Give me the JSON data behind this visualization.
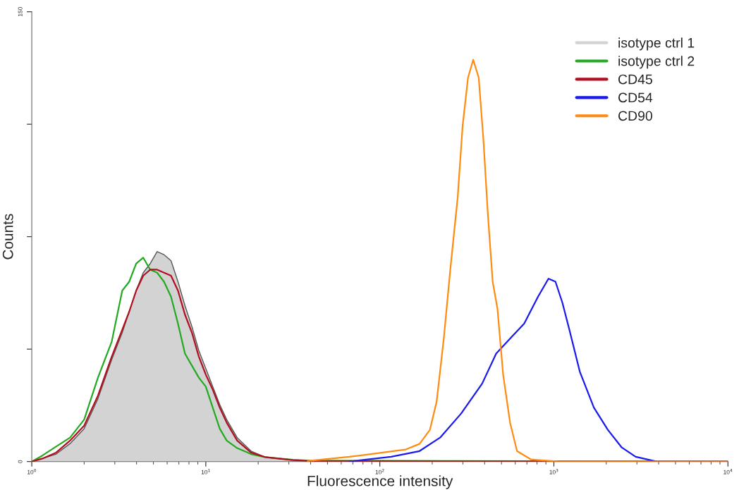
{
  "chart_data": {
    "type": "line",
    "xlabel": "Fluorescence intensity",
    "ylabel": "Counts",
    "log": "x",
    "xlim": [
      1,
      10000
    ],
    "xticks": [
      {
        "value": 1,
        "label": "10$^{0}$"
      },
      {
        "value": 10,
        "label": "10$^{1}$"
      },
      {
        "value": 100,
        "label": "10$^{2}$"
      },
      {
        "value": 1000,
        "label": "10$^{3}$"
      },
      {
        "value": 10000,
        "label": "10$^{4}$"
      }
    ],
    "ylim": [
      0,
      150
    ],
    "yticks": [
      0,
      {
        "value": 37.5,
        "label": null
      },
      {
        "value": 75,
        "label": null
      },
      {
        "value": 112.5,
        "label": null
      },
      150
    ],
    "grid": false,
    "legend": "top right",
    "series": [
      {
        "name": "isotype ctrl 1",
        "type": "area",
        "color": "#d3d3d3",
        "x": [
          1,
          1.15,
          1.38,
          1.66,
          2.0,
          2.4,
          2.88,
          3.31,
          3.63,
          3.98,
          4.37,
          4.79,
          5.25,
          5.75,
          6.31,
          6.92,
          7.59,
          8.32,
          9.12,
          10,
          10.96,
          12.02,
          13.18,
          15.14,
          18.2,
          21.9,
          31.6,
          39.8,
          10000
        ],
        "values": [
          0,
          1,
          2.5,
          6,
          11,
          21,
          34,
          43,
          50,
          57,
          63,
          66,
          70,
          69,
          67,
          60,
          52,
          45,
          37,
          31,
          25,
          19,
          14,
          8,
          3.5,
          1.5,
          0.5,
          0.2,
          0
        ]
      },
      {
        "name": "isotype ctrl 2",
        "color": "#22aa22",
        "x": [
          1,
          1.15,
          1.38,
          1.66,
          2.0,
          2.4,
          2.88,
          3.31,
          3.63,
          3.98,
          4.37,
          4.79,
          5.25,
          5.75,
          6.31,
          6.92,
          7.59,
          8.32,
          9.12,
          10,
          10.96,
          12.02,
          13.18,
          15.14,
          18.2,
          21.9,
          31.6,
          39.8,
          10000
        ],
        "values": [
          0,
          2,
          5,
          8,
          14,
          28,
          40,
          57,
          60,
          66,
          68,
          64,
          63,
          60,
          55,
          46,
          36,
          32,
          28,
          25,
          18,
          11,
          7,
          4.5,
          2.5,
          1.5,
          0.6,
          0.3,
          0
        ]
      },
      {
        "name": "CD45",
        "color": "#b01020",
        "x": [
          1,
          1.15,
          1.38,
          1.66,
          2.0,
          2.4,
          2.88,
          3.31,
          3.63,
          3.98,
          4.37,
          4.79,
          5.25,
          5.75,
          6.31,
          6.92,
          7.59,
          8.32,
          9.12,
          10,
          10.96,
          12.02,
          13.18,
          15.14,
          18.2,
          21.9,
          31.6,
          39.8,
          10000
        ],
        "values": [
          0,
          1,
          3,
          7,
          12,
          22,
          35,
          44,
          50,
          57,
          62,
          64,
          64,
          63,
          62,
          57,
          49,
          43,
          35,
          29,
          24,
          18,
          13,
          7,
          3,
          1.5,
          0.5,
          0.2,
          0
        ]
      },
      {
        "name": "CD54",
        "color": "#1a1aee",
        "x": [
          66.8,
          116,
          169,
          222,
          293,
          387,
          466,
          560,
          675,
          811,
          931,
          1021,
          1119,
          1227,
          1409,
          1698,
          2042,
          2455,
          2951,
          3890,
          10000
        ],
        "values": [
          0,
          1.6,
          3.5,
          8,
          16,
          26,
          36,
          41,
          46,
          55,
          61,
          60,
          53,
          44,
          30,
          18,
          10.6,
          4.7,
          1.6,
          0,
          0
        ]
      },
      {
        "name": "CD90",
        "color": "#ff8c10",
        "x": [
          38.5,
          66.8,
          96.8,
          140,
          169,
          194,
          212,
          233,
          255,
          280,
          299,
          321,
          344,
          370,
          394,
          417,
          445,
          474,
          511,
          560,
          614,
          740,
          1069,
          10000
        ],
        "values": [
          0.2,
          1.6,
          2.8,
          4,
          5.9,
          10.6,
          20,
          41,
          65,
          88,
          112,
          128,
          134,
          128,
          107,
          83,
          60,
          51,
          29,
          13,
          3.5,
          0.7,
          0,
          0
        ]
      }
    ]
  }
}
